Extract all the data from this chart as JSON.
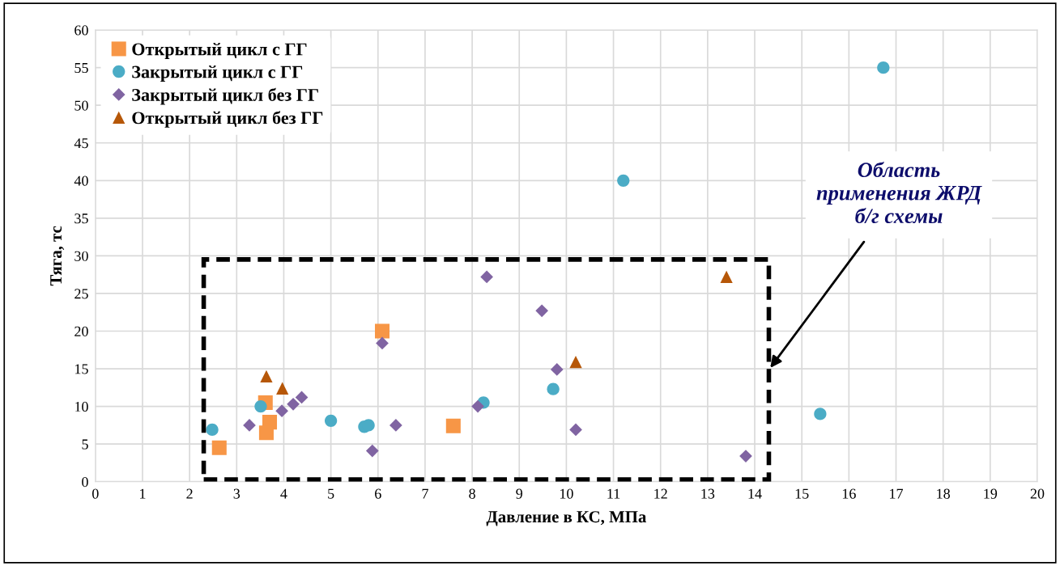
{
  "chart_data": {
    "type": "scatter",
    "xlabel": "Давление в КС, МПа",
    "ylabel": "Тяга, тс",
    "xlim": [
      0,
      20
    ],
    "xticks": [
      0,
      1,
      2,
      3,
      4,
      5,
      6,
      7,
      8,
      9,
      10,
      11,
      12,
      13,
      14,
      15,
      16,
      17,
      18,
      19,
      20
    ],
    "ylim": [
      0,
      60
    ],
    "yticks": [
      0,
      5,
      10,
      15,
      20,
      25,
      30,
      35,
      40,
      45,
      50,
      55,
      60
    ],
    "grid": true,
    "legend": "top left",
    "annotations": [
      "Область\nприменения ЖРД\nб/г схемы"
    ],
    "series": [
      {
        "name": "Открытый цикл с ГГ",
        "color": "#f79646",
        "marker": "square",
        "x": [
          2.63,
          3.61,
          3.7,
          3.63,
          6.09,
          7.6
        ],
        "values": [
          4.5,
          10.5,
          7.9,
          6.5,
          20.0,
          7.4
        ]
      },
      {
        "name": "Закрытый цикл с ГГ",
        "color": "#4bacc6",
        "marker": "circle",
        "x": [
          2.48,
          3.51,
          5.0,
          5.71,
          5.8,
          8.24,
          9.72,
          11.21,
          15.39,
          16.73
        ],
        "values": [
          6.9,
          10.0,
          8.1,
          7.3,
          7.5,
          10.5,
          12.3,
          40.0,
          9.0,
          55.0
        ]
      },
      {
        "name": "Закрытый цикл без ГГ",
        "color": "#8064a2",
        "marker": "diamond",
        "x": [
          3.27,
          3.96,
          4.2,
          4.38,
          6.09,
          5.88,
          6.38,
          8.12,
          8.31,
          9.48,
          9.8,
          10.2,
          13.81
        ],
        "values": [
          7.5,
          9.4,
          10.3,
          11.2,
          18.4,
          4.1,
          7.5,
          10.0,
          27.2,
          22.7,
          14.9,
          6.9,
          3.4
        ]
      },
      {
        "name": "Открытый цикл без ГГ",
        "color": "#b65708",
        "marker": "triangle",
        "x": [
          3.63,
          3.97,
          10.2,
          13.4
        ],
        "values": [
          14.0,
          12.4,
          15.9,
          27.2
        ]
      }
    ]
  }
}
